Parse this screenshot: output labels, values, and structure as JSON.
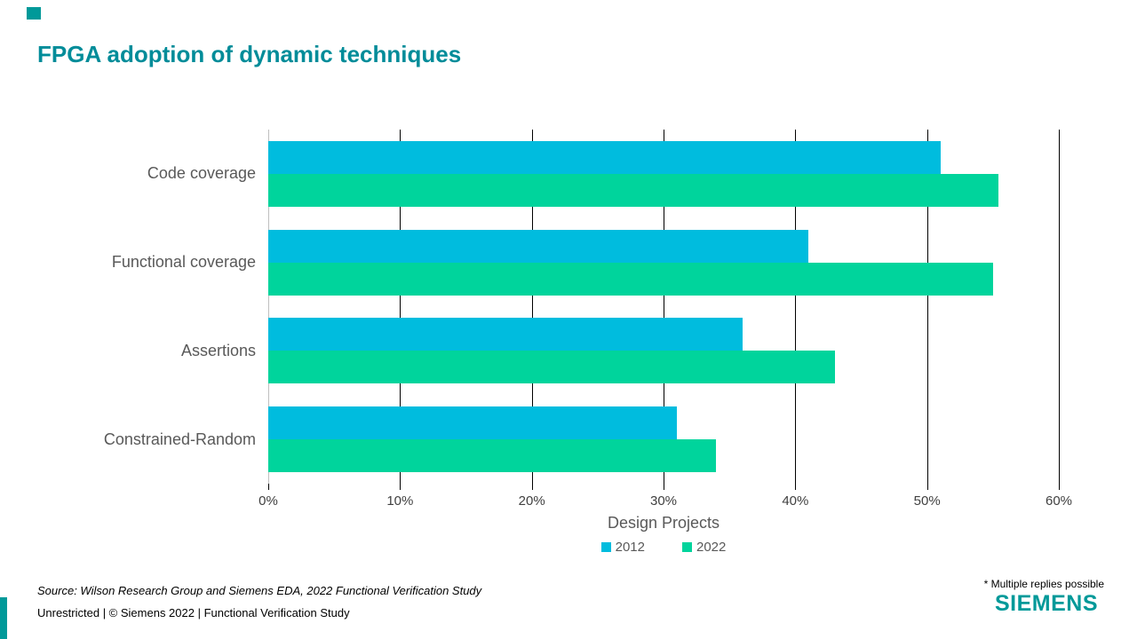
{
  "title": "FPGA adoption of dynamic techniques",
  "accent_color": "#009999",
  "chart_data": {
    "type": "bar",
    "orientation": "horizontal",
    "title": "FPGA adoption of dynamic techniques",
    "categories": [
      "Code coverage",
      "Functional coverage",
      "Assertions",
      "Constrained-Random"
    ],
    "series": [
      {
        "name": "2012",
        "color": "#00BCDE",
        "values": [
          51,
          41,
          36,
          31
        ]
      },
      {
        "name": "2022",
        "color": "#00D49C",
        "values": [
          55.4,
          55,
          43,
          34
        ]
      }
    ],
    "xlabel": "Design Projects",
    "ylabel": "",
    "xlim": [
      0,
      60
    ],
    "x_ticks": [
      "0%",
      "10%",
      "20%",
      "30%",
      "40%",
      "50%",
      "60%"
    ],
    "grid": "vertical",
    "legend_position": "bottom-center"
  },
  "footnote": "* Multiple replies possible",
  "source_line": "Source:  Wilson Research Group and Siemens EDA, 2022 Functional Verification Study",
  "classification_line": "Unrestricted | © Siemens 2022 |  Functional Verification Study",
  "logo_text": "SIEMENS"
}
